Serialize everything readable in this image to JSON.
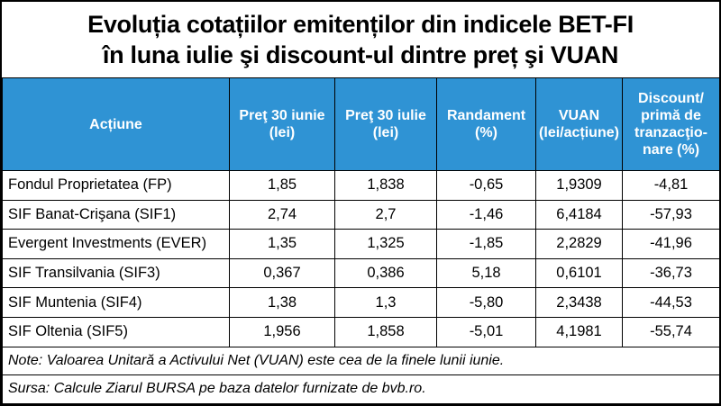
{
  "title": {
    "line1": "Evoluția cotațiilor emitenților din indicele BET-FI",
    "line2": "în luna iulie şi discount-ul dintre preț şi VUAN"
  },
  "table": {
    "header_color": "#2f93d4",
    "columns": [
      [
        "Acțiune"
      ],
      [
        "Preţ 30 iunie",
        "(lei)"
      ],
      [
        "Preţ 30 iulie",
        "(lei)"
      ],
      [
        "Randament",
        "(%)"
      ],
      [
        "VUAN",
        "(lei/acțiune)"
      ],
      [
        "Discount/",
        "primă de",
        "tranzacţio-",
        "nare (%)"
      ]
    ],
    "rows": [
      [
        "Fondul Proprietatea (FP)",
        "1,85",
        "1,838",
        "-0,65",
        "1,9309",
        "-4,81"
      ],
      [
        "SIF Banat-Crişana (SIF1)",
        "2,74",
        "2,7",
        "-1,46",
        "6,4184",
        "-57,93"
      ],
      [
        "Evergent Investments (EVER)",
        "1,35",
        "1,325",
        "-1,85",
        "2,2829",
        "-41,96"
      ],
      [
        "SIF Transilvania (SIF3)",
        "0,367",
        "0,386",
        "5,18",
        "0,6101",
        "-36,73"
      ],
      [
        "SIF Muntenia (SIF4)",
        "1,38",
        "1,3",
        "-5,80",
        "2,3438",
        "-44,53"
      ],
      [
        "SIF Oltenia (SIF5)",
        "1,956",
        "1,858",
        "-5,01",
        "4,1981",
        "-55,74"
      ]
    ],
    "note": "Note: Valoarea Unitară a Activului Net (VUAN) este cea de la finele lunii iunie.",
    "source": "Sursa: Calcule Ziarul BURSA pe baza datelor furnizate de bvb.ro."
  }
}
